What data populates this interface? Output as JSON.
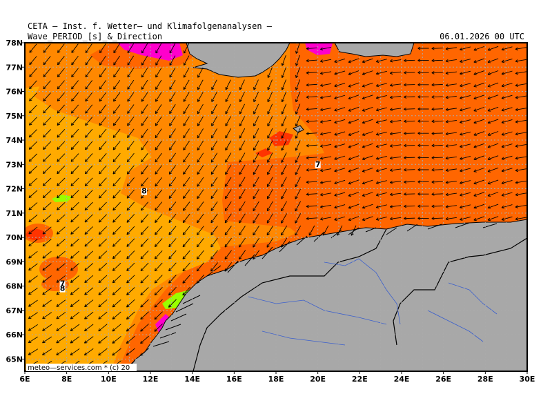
{
  "header": {
    "institute": "CETA — Inst. f. Wetter— und Klimafolgenanalysen —",
    "variable": "Wave_PERIOD_[s]_&_Direction",
    "datetime": "06.01.2026 00 UTC"
  },
  "map": {
    "lon_range": [
      6,
      30
    ],
    "lat_range": [
      64.5,
      78
    ],
    "lon_ticks": [
      "6E",
      "8E",
      "10E",
      "12E",
      "14E",
      "16E",
      "18E",
      "20E",
      "22E",
      "24E",
      "26E",
      "28E",
      "30E"
    ],
    "lat_ticks": [
      "78N",
      "77N",
      "76N",
      "75N",
      "74N",
      "73N",
      "72N",
      "71N",
      "70N",
      "69N",
      "68N",
      "67N",
      "66N",
      "65N"
    ],
    "period_labels": [
      {
        "text": "7",
        "lon": 20.0,
        "lat": 72.9
      },
      {
        "text": "8",
        "lon": 11.7,
        "lat": 71.8
      },
      {
        "text": "7",
        "lon": 7.8,
        "lat": 68.0
      },
      {
        "text": "8",
        "lon": 7.8,
        "lat": 67.8
      }
    ],
    "colors": {
      "ocean_long_period": "#ffaa00",
      "ocean_mid_period": "#ff8800",
      "ocean_short_period": "#ff6600",
      "ocean_very_short": "#ff3300",
      "magenta_band": "#ff00cc",
      "green_band": "#99ff00",
      "land": "#a8a8a8",
      "grid": "#aaaaaa",
      "rivers": "#3a5fcd"
    },
    "credit": "meteo—services.com * (c) 20"
  }
}
